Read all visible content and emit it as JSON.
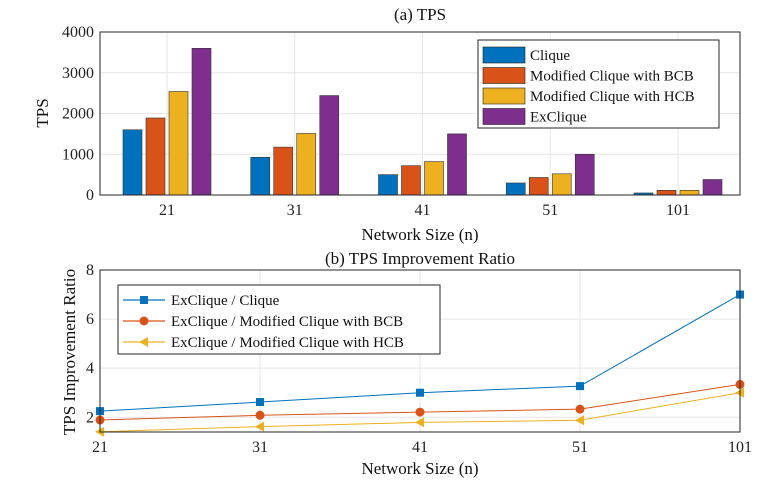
{
  "chart_data": [
    {
      "type": "bar",
      "title": "(a) TPS",
      "xlabel": "Network Size (n)",
      "ylabel": "TPS",
      "categories": [
        "21",
        "31",
        "41",
        "51",
        "101"
      ],
      "ylim": [
        0,
        4000
      ],
      "yticks": [
        0,
        1000,
        2000,
        3000,
        4000
      ],
      "grid": true,
      "legend_position": "top-right",
      "series": [
        {
          "name": "Clique",
          "color": "#0072BD",
          "values": [
            1600,
            925,
            500,
            295,
            50
          ]
        },
        {
          "name": "Modified Clique with BCB",
          "color": "#D95319",
          "values": [
            1890,
            1175,
            720,
            430,
            115
          ]
        },
        {
          "name": "Modified Clique with HCB",
          "color": "#EDB120",
          "values": [
            2540,
            1510,
            820,
            520,
            115
          ]
        },
        {
          "name": "ExClique",
          "color": "#7E2F8E",
          "values": [
            3600,
            2440,
            1500,
            1000,
            380
          ]
        }
      ]
    },
    {
      "type": "line",
      "title": "(b) TPS Improvement Ratio",
      "xlabel": "Network Size (n)",
      "ylabel": "TPS Improvement Ratio",
      "categories": [
        "21",
        "31",
        "41",
        "51",
        "101"
      ],
      "ylim": [
        1.4,
        8
      ],
      "yticks": [
        2,
        4,
        6,
        8
      ],
      "grid": true,
      "legend_position": "top-left",
      "series": [
        {
          "name": "ExClique / Clique",
          "color": "#0072BD",
          "marker": "square",
          "values": [
            2.25,
            2.62,
            3.0,
            3.27,
            7.0
          ]
        },
        {
          "name": "ExClique / Modified Clique with BCB",
          "color": "#D95319",
          "marker": "circle",
          "values": [
            1.89,
            2.08,
            2.21,
            2.33,
            3.34
          ]
        },
        {
          "name": "ExClique / Modified Clique with HCB",
          "color": "#EDB120",
          "marker": "triangle-left",
          "values": [
            1.41,
            1.62,
            1.79,
            1.88,
            3.0
          ]
        }
      ]
    }
  ]
}
